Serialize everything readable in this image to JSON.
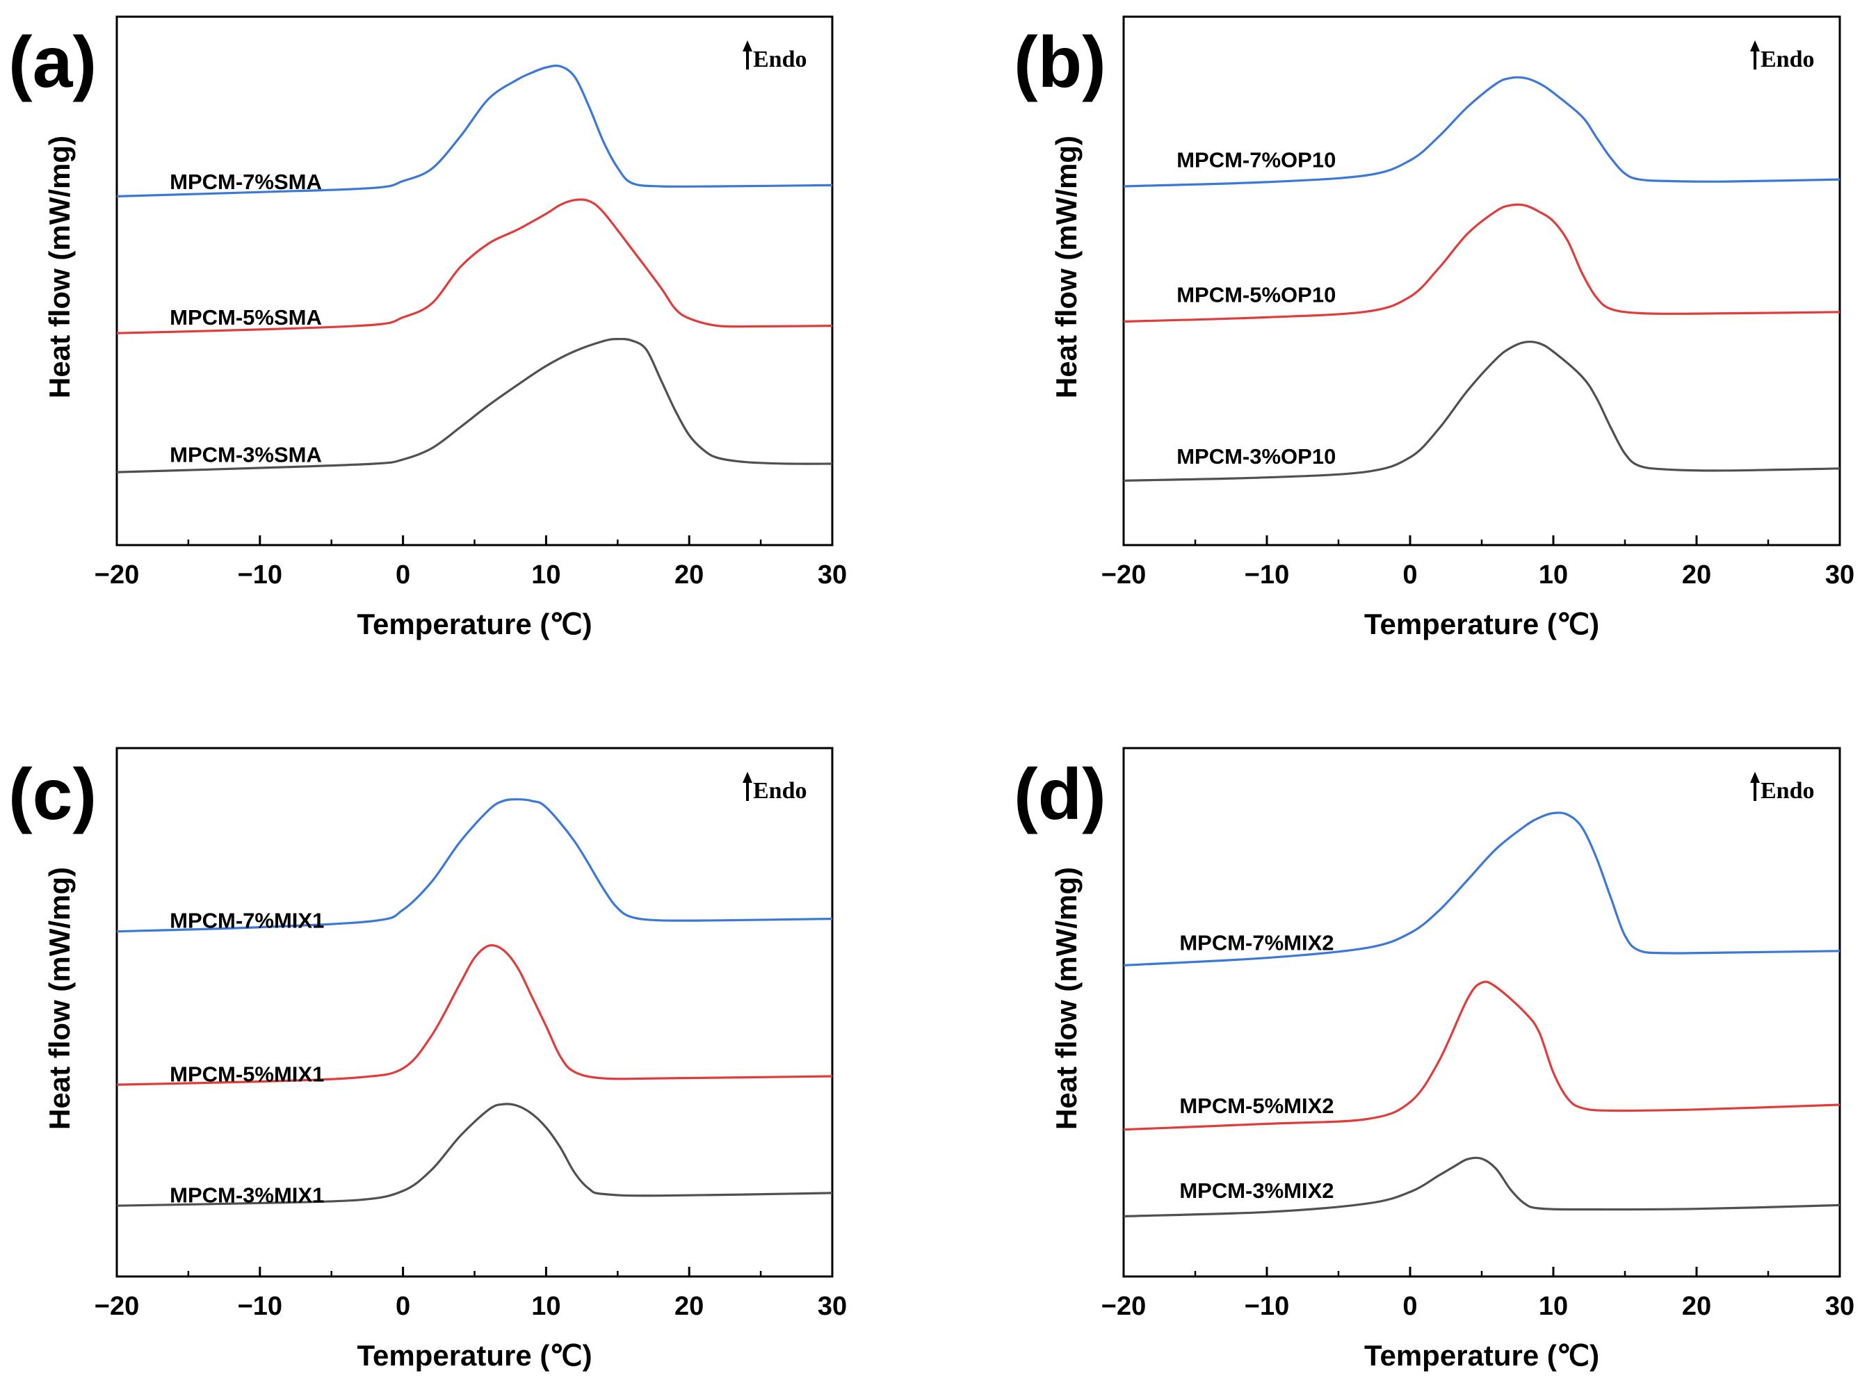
{
  "chart_data": [
    {
      "type": "line",
      "panel": "(a)",
      "annotation": "Endo",
      "xlabel": "Temperature (℃)",
      "ylabel": "Heat flow (mW/mg)",
      "xlim": [
        -20,
        30
      ],
      "xticks": [
        -20,
        -10,
        0,
        10,
        20,
        30
      ],
      "xtick_labels": [
        "−20",
        "−10",
        "0",
        "10",
        "20",
        "30"
      ],
      "ylim": [
        0,
        100
      ],
      "grid": false,
      "series": [
        {
          "name": "MPCM-7%SMA",
          "color": "#3c78d8",
          "label_at": [
            -16.3,
            67.4
          ],
          "points": [
            [
              -20,
              66
            ],
            [
              -10,
              66.8
            ],
            [
              -2,
              67.6
            ],
            [
              0,
              68.9
            ],
            [
              2,
              71.2
            ],
            [
              4,
              77.3
            ],
            [
              6,
              84.5
            ],
            [
              8,
              88.1
            ],
            [
              9,
              89.4
            ],
            [
              10,
              90.4
            ],
            [
              11,
              90.6
            ],
            [
              12,
              88.6
            ],
            [
              13,
              83
            ],
            [
              14,
              76.4
            ],
            [
              15,
              71.4
            ],
            [
              16,
              68.5
            ],
            [
              18,
              67.9
            ],
            [
              22,
              67.9
            ],
            [
              30,
              68.1
            ]
          ]
        },
        {
          "name": "MPCM-5%SMA",
          "color": "#e03c3c",
          "label_at": [
            -16.3,
            41.7
          ],
          "points": [
            [
              -20,
              40.1
            ],
            [
              -10,
              40.8
            ],
            [
              -2,
              41.7
            ],
            [
              0,
              43.1
            ],
            [
              2,
              45.7
            ],
            [
              4,
              52.6
            ],
            [
              6,
              57.1
            ],
            [
              8,
              59.7
            ],
            [
              10,
              62.7
            ],
            [
              11,
              64.4
            ],
            [
              12,
              65.3
            ],
            [
              13,
              65.1
            ],
            [
              14,
              63
            ],
            [
              16,
              56
            ],
            [
              18,
              48.8
            ],
            [
              19,
              44.8
            ],
            [
              20,
              42.9
            ],
            [
              22,
              41.5
            ],
            [
              25,
              41.4
            ],
            [
              30,
              41.5
            ]
          ]
        },
        {
          "name": "MPCM-3%SMA",
          "color": "#505050",
          "label_at": [
            -16.3,
            15.7
          ],
          "points": [
            [
              -20,
              13.8
            ],
            [
              -10,
              14.6
            ],
            [
              -2,
              15.4
            ],
            [
              0,
              16.2
            ],
            [
              2,
              18.3
            ],
            [
              4,
              22.3
            ],
            [
              6,
              26.5
            ],
            [
              8,
              30.3
            ],
            [
              10,
              33.9
            ],
            [
              12,
              36.7
            ],
            [
              14,
              38.6
            ],
            [
              15,
              39
            ],
            [
              16,
              38.7
            ],
            [
              17,
              37
            ],
            [
              18,
              31.4
            ],
            [
              19,
              25.6
            ],
            [
              20,
              20.8
            ],
            [
              21,
              18
            ],
            [
              22,
              16.5
            ],
            [
              24,
              15.7
            ],
            [
              27,
              15.4
            ],
            [
              30,
              15.4
            ]
          ]
        }
      ]
    },
    {
      "type": "line",
      "panel": "(b)",
      "annotation": "Endo",
      "xlabel": "Temperature (℃)",
      "ylabel": "Heat flow (mW/mg)",
      "xlim": [
        -20,
        30
      ],
      "xticks": [
        -20,
        -10,
        0,
        10,
        20,
        30
      ],
      "xtick_labels": [
        "−20",
        "−10",
        "0",
        "10",
        "20",
        "30"
      ],
      "ylim": [
        0,
        100
      ],
      "grid": false,
      "series": [
        {
          "name": "MPCM-7%OP10",
          "color": "#3c78d8",
          "label_at": [
            -16.3,
            71.5
          ],
          "points": [
            [
              -20,
              67.9
            ],
            [
              -10,
              68.7
            ],
            [
              -3,
              70
            ],
            [
              0,
              72.8
            ],
            [
              2,
              77.3
            ],
            [
              4,
              82.9
            ],
            [
              6,
              87.3
            ],
            [
              7,
              88.4
            ],
            [
              8,
              88.4
            ],
            [
              9,
              87.4
            ],
            [
              10,
              85.6
            ],
            [
              12,
              81.1
            ],
            [
              13,
              77.2
            ],
            [
              14,
              73.3
            ],
            [
              15,
              70.3
            ],
            [
              16,
              69.2
            ],
            [
              18,
              68.9
            ],
            [
              22,
              68.8
            ],
            [
              30,
              69.2
            ]
          ]
        },
        {
          "name": "MPCM-5%OP10",
          "color": "#e03c3c",
          "label_at": [
            -16.3,
            46
          ],
          "points": [
            [
              -20,
              42.3
            ],
            [
              -10,
              43.1
            ],
            [
              -3,
              44.2
            ],
            [
              0,
              47
            ],
            [
              2,
              52.4
            ],
            [
              4,
              58.9
            ],
            [
              6,
              63.2
            ],
            [
              7,
              64.3
            ],
            [
              8,
              64.3
            ],
            [
              9,
              63.1
            ],
            [
              10,
              61.3
            ],
            [
              11,
              57.6
            ],
            [
              12,
              51.5
            ],
            [
              13,
              46.9
            ],
            [
              14,
              44.7
            ],
            [
              16,
              43.9
            ],
            [
              20,
              43.8
            ],
            [
              30,
              44.1
            ]
          ]
        },
        {
          "name": "MPCM-3%OP10",
          "color": "#505050",
          "label_at": [
            -16.3,
            15.4
          ],
          "points": [
            [
              -20,
              12.2
            ],
            [
              -10,
              12.8
            ],
            [
              -3,
              13.9
            ],
            [
              0,
              16.6
            ],
            [
              2,
              22
            ],
            [
              4,
              29.2
            ],
            [
              6,
              35.2
            ],
            [
              7,
              37.3
            ],
            [
              8,
              38.4
            ],
            [
              9,
              38.2
            ],
            [
              10,
              36.6
            ],
            [
              12,
              31.9
            ],
            [
              13,
              27.9
            ],
            [
              14,
              22.3
            ],
            [
              15,
              17.3
            ],
            [
              16,
              15
            ],
            [
              18,
              14.3
            ],
            [
              22,
              14.1
            ],
            [
              30,
              14.5
            ]
          ]
        }
      ]
    },
    {
      "type": "line",
      "panel": "(c)",
      "annotation": "Endo",
      "xlabel": "Temperature (℃)",
      "ylabel": "Heat flow (mW/mg)",
      "xlim": [
        -20,
        30
      ],
      "xticks": [
        -20,
        -10,
        0,
        10,
        20,
        30
      ],
      "xtick_labels": [
        "−20",
        "−10",
        "0",
        "10",
        "20",
        "30"
      ],
      "ylim": [
        0,
        100
      ],
      "grid": false,
      "series": [
        {
          "name": "MPCM-7%MIX1",
          "color": "#3c78d8",
          "label_at": [
            -16.3,
            66
          ],
          "points": [
            [
              -20,
              65.3
            ],
            [
              -10,
              66.1
            ],
            [
              -2,
              67.3
            ],
            [
              0,
              69.4
            ],
            [
              2,
              74.7
            ],
            [
              4,
              82.3
            ],
            [
              6,
              88.3
            ],
            [
              7,
              90
            ],
            [
              8,
              90.3
            ],
            [
              9,
              90
            ],
            [
              10,
              88.8
            ],
            [
              12,
              82.3
            ],
            [
              14,
              73.4
            ],
            [
              15,
              69.7
            ],
            [
              16,
              68
            ],
            [
              18,
              67.4
            ],
            [
              22,
              67.4
            ],
            [
              30,
              67.7
            ]
          ]
        },
        {
          "name": "MPCM-5%MIX1",
          "color": "#e03c3c",
          "label_at": [
            -16.3,
            36.9
          ],
          "points": [
            [
              -20,
              36.3
            ],
            [
              -10,
              36.9
            ],
            [
              -3,
              37.7
            ],
            [
              0,
              39.4
            ],
            [
              2,
              45.6
            ],
            [
              4,
              55.5
            ],
            [
              5,
              60.3
            ],
            [
              6,
              62.6
            ],
            [
              7,
              61.8
            ],
            [
              8,
              58.5
            ],
            [
              9,
              53
            ],
            [
              10,
              47.4
            ],
            [
              11,
              41.6
            ],
            [
              12,
              38.7
            ],
            [
              14,
              37.5
            ],
            [
              18,
              37.5
            ],
            [
              30,
              37.9
            ]
          ]
        },
        {
          "name": "MPCM-3%MIX1",
          "color": "#505050",
          "label_at": [
            -16.3,
            14
          ],
          "points": [
            [
              -20,
              13.4
            ],
            [
              -10,
              13.9
            ],
            [
              -3,
              14.5
            ],
            [
              0,
              16.2
            ],
            [
              2,
              20.2
            ],
            [
              4,
              26.6
            ],
            [
              6,
              31.6
            ],
            [
              7,
              32.6
            ],
            [
              8,
              32.3
            ],
            [
              9,
              30.8
            ],
            [
              10,
              28.2
            ],
            [
              11,
              24.4
            ],
            [
              12,
              19.6
            ],
            [
              13,
              16.6
            ],
            [
              14,
              15.6
            ],
            [
              18,
              15.3
            ],
            [
              30,
              15.8
            ]
          ]
        }
      ]
    },
    {
      "type": "line",
      "panel": "(d)",
      "annotation": "Endo",
      "xlabel": "Temperature (℃)",
      "ylabel": "Heat flow (mW/mg)",
      "xlim": [
        -20,
        30
      ],
      "xticks": [
        -20,
        -10,
        0,
        10,
        20,
        30
      ],
      "xtick_labels": [
        "−20",
        "−10",
        "0",
        "10",
        "20",
        "30"
      ],
      "ylim": [
        0,
        100
      ],
      "grid": false,
      "series": [
        {
          "name": "MPCM-7%MIX2",
          "color": "#3c78d8",
          "label_at": [
            -16.1,
            61.8
          ],
          "points": [
            [
              -20,
              58.9
            ],
            [
              -10,
              60.3
            ],
            [
              -3,
              62.2
            ],
            [
              0,
              65
            ],
            [
              2,
              69.2
            ],
            [
              4,
              75
            ],
            [
              6,
              80.9
            ],
            [
              8,
              85.2
            ],
            [
              9,
              86.8
            ],
            [
              10,
              87.7
            ],
            [
              11,
              87.4
            ],
            [
              12,
              85
            ],
            [
              13,
              79.3
            ],
            [
              14,
              71.8
            ],
            [
              15,
              64.5
            ],
            [
              16,
              61.7
            ],
            [
              18,
              61.2
            ],
            [
              22,
              61.3
            ],
            [
              30,
              61.6
            ]
          ]
        },
        {
          "name": "MPCM-5%MIX2",
          "color": "#e03c3c",
          "label_at": [
            -16.1,
            30.9
          ],
          "points": [
            [
              -20,
              27.8
            ],
            [
              -10,
              28.9
            ],
            [
              -3,
              29.8
            ],
            [
              0,
              33
            ],
            [
              2,
              40.7
            ],
            [
              4,
              52.5
            ],
            [
              5,
              55.6
            ],
            [
              6,
              54.8
            ],
            [
              8,
              50
            ],
            [
              9,
              46.3
            ],
            [
              10,
              38.6
            ],
            [
              11,
              33.7
            ],
            [
              12,
              31.9
            ],
            [
              14,
              31.4
            ],
            [
              20,
              31.6
            ],
            [
              30,
              32.5
            ]
          ]
        },
        {
          "name": "MPCM-3%MIX2",
          "color": "#505050",
          "label_at": [
            -16.1,
            14.9
          ],
          "points": [
            [
              -20,
              11.4
            ],
            [
              -10,
              12.2
            ],
            [
              -3,
              13.8
            ],
            [
              0,
              16
            ],
            [
              2,
              19.1
            ],
            [
              3,
              20.7
            ],
            [
              4,
              22.2
            ],
            [
              5,
              22.3
            ],
            [
              6,
              20.4
            ],
            [
              7,
              16.5
            ],
            [
              8,
              13.8
            ],
            [
              9,
              12.9
            ],
            [
              12,
              12.7
            ],
            [
              20,
              12.8
            ],
            [
              30,
              13.5
            ]
          ]
        }
      ]
    }
  ]
}
